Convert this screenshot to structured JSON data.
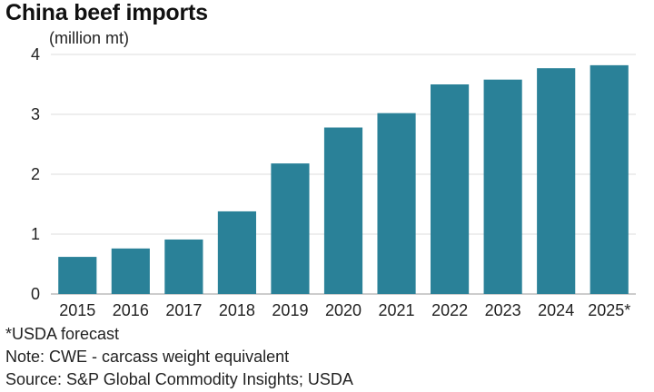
{
  "chart_data": {
    "type": "bar",
    "title": "China beef imports",
    "unit_label": "(million mt)",
    "categories": [
      "2015",
      "2016",
      "2017",
      "2018",
      "2019",
      "2020",
      "2021",
      "2022",
      "2023",
      "2024",
      "2025*"
    ],
    "values": [
      0.62,
      0.76,
      0.91,
      1.38,
      2.18,
      2.78,
      3.02,
      3.5,
      3.58,
      3.77,
      3.82
    ],
    "ylim": [
      0,
      4
    ],
    "yticks": [
      "0",
      "1",
      "2",
      "3",
      "4"
    ],
    "xlabel": "",
    "ylabel": "",
    "grid": true,
    "bar_color": "#2a8198"
  },
  "footnotes": {
    "forecast": "*USDA forecast",
    "note": "Note: CWE - carcass weight equivalent",
    "source": "Source: S&P Global Commodity Insights; USDA"
  }
}
